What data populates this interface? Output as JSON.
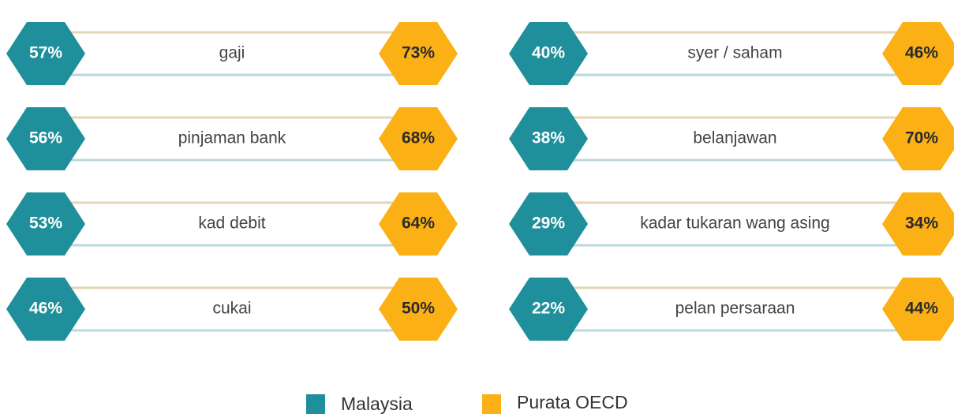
{
  "items": [
    {
      "label": "gaji",
      "malaysia": "57%",
      "oecd": "73%"
    },
    {
      "label": "pinjaman bank",
      "malaysia": "56%",
      "oecd": "68%"
    },
    {
      "label": "kad debit",
      "malaysia": "53%",
      "oecd": "64%"
    },
    {
      "label": "cukai",
      "malaysia": "46%",
      "oecd": "50%"
    },
    {
      "label": "syer / saham",
      "malaysia": "40%",
      "oecd": "46%"
    },
    {
      "label": "belanjawan",
      "malaysia": "38%",
      "oecd": "70%"
    },
    {
      "label": "kadar tukaran wang asing",
      "malaysia": "29%",
      "oecd": "34%"
    },
    {
      "label": "pelan persaraan",
      "malaysia": "22%",
      "oecd": "44%"
    }
  ],
  "legend": {
    "malaysia": "Malaysia",
    "oecd": "Purata OECD"
  }
}
